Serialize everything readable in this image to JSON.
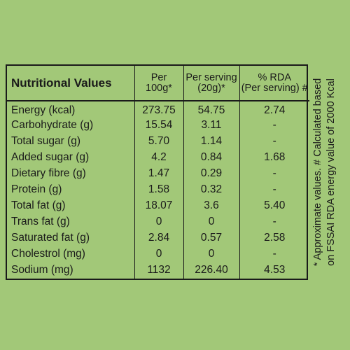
{
  "table": {
    "headers": {
      "name": "Nutritional Values",
      "per100g": [
        "Per",
        "100g*"
      ],
      "perServing": [
        "Per serving",
        "(20g)*"
      ],
      "rda": [
        "% RDA",
        "(Per serving) #"
      ]
    },
    "rows": [
      {
        "name": "Energy (kcal)",
        "per100g": "273.75",
        "perServing": "54.75",
        "rda": "2.74"
      },
      {
        "name": "Carbohydrate (g)",
        "per100g": "15.54",
        "perServing": "3.11",
        "rda": "-"
      },
      {
        "name": "Total sugar (g)",
        "per100g": "5.70",
        "perServing": "1.14",
        "rda": "-"
      },
      {
        "name": "Added sugar (g)",
        "per100g": "4.2",
        "perServing": "0.84",
        "rda": "1.68"
      },
      {
        "name": "Dietary fibre (g)",
        "per100g": "1.47",
        "perServing": "0.29",
        "rda": "-"
      },
      {
        "name": "Protein (g)",
        "per100g": "1.58",
        "perServing": "0.32",
        "rda": "-"
      },
      {
        "name": "Total fat (g)",
        "per100g": "18.07",
        "perServing": "3.6",
        "rda": "5.40"
      },
      {
        "name": "Trans fat (g)",
        "per100g": "0",
        "perServing": "0",
        "rda": "-"
      },
      {
        "name": "Saturated fat (g)",
        "per100g": "2.84",
        "perServing": "0.57",
        "rda": "2.58"
      },
      {
        "name": "Cholestrol (mg)",
        "per100g": "0",
        "perServing": "0",
        "rda": "-"
      },
      {
        "name": "Sodium (mg)",
        "per100g": "1132",
        "perServing": "226.40",
        "rda": "4.53"
      }
    ]
  },
  "footnote": {
    "line1": "* Approximate values.  # Calculated based",
    "line2": "on FSSAI RDA energy value of 2000 Kcal"
  },
  "colors": {
    "background": "#a2c878",
    "text": "#1a1a1a"
  }
}
